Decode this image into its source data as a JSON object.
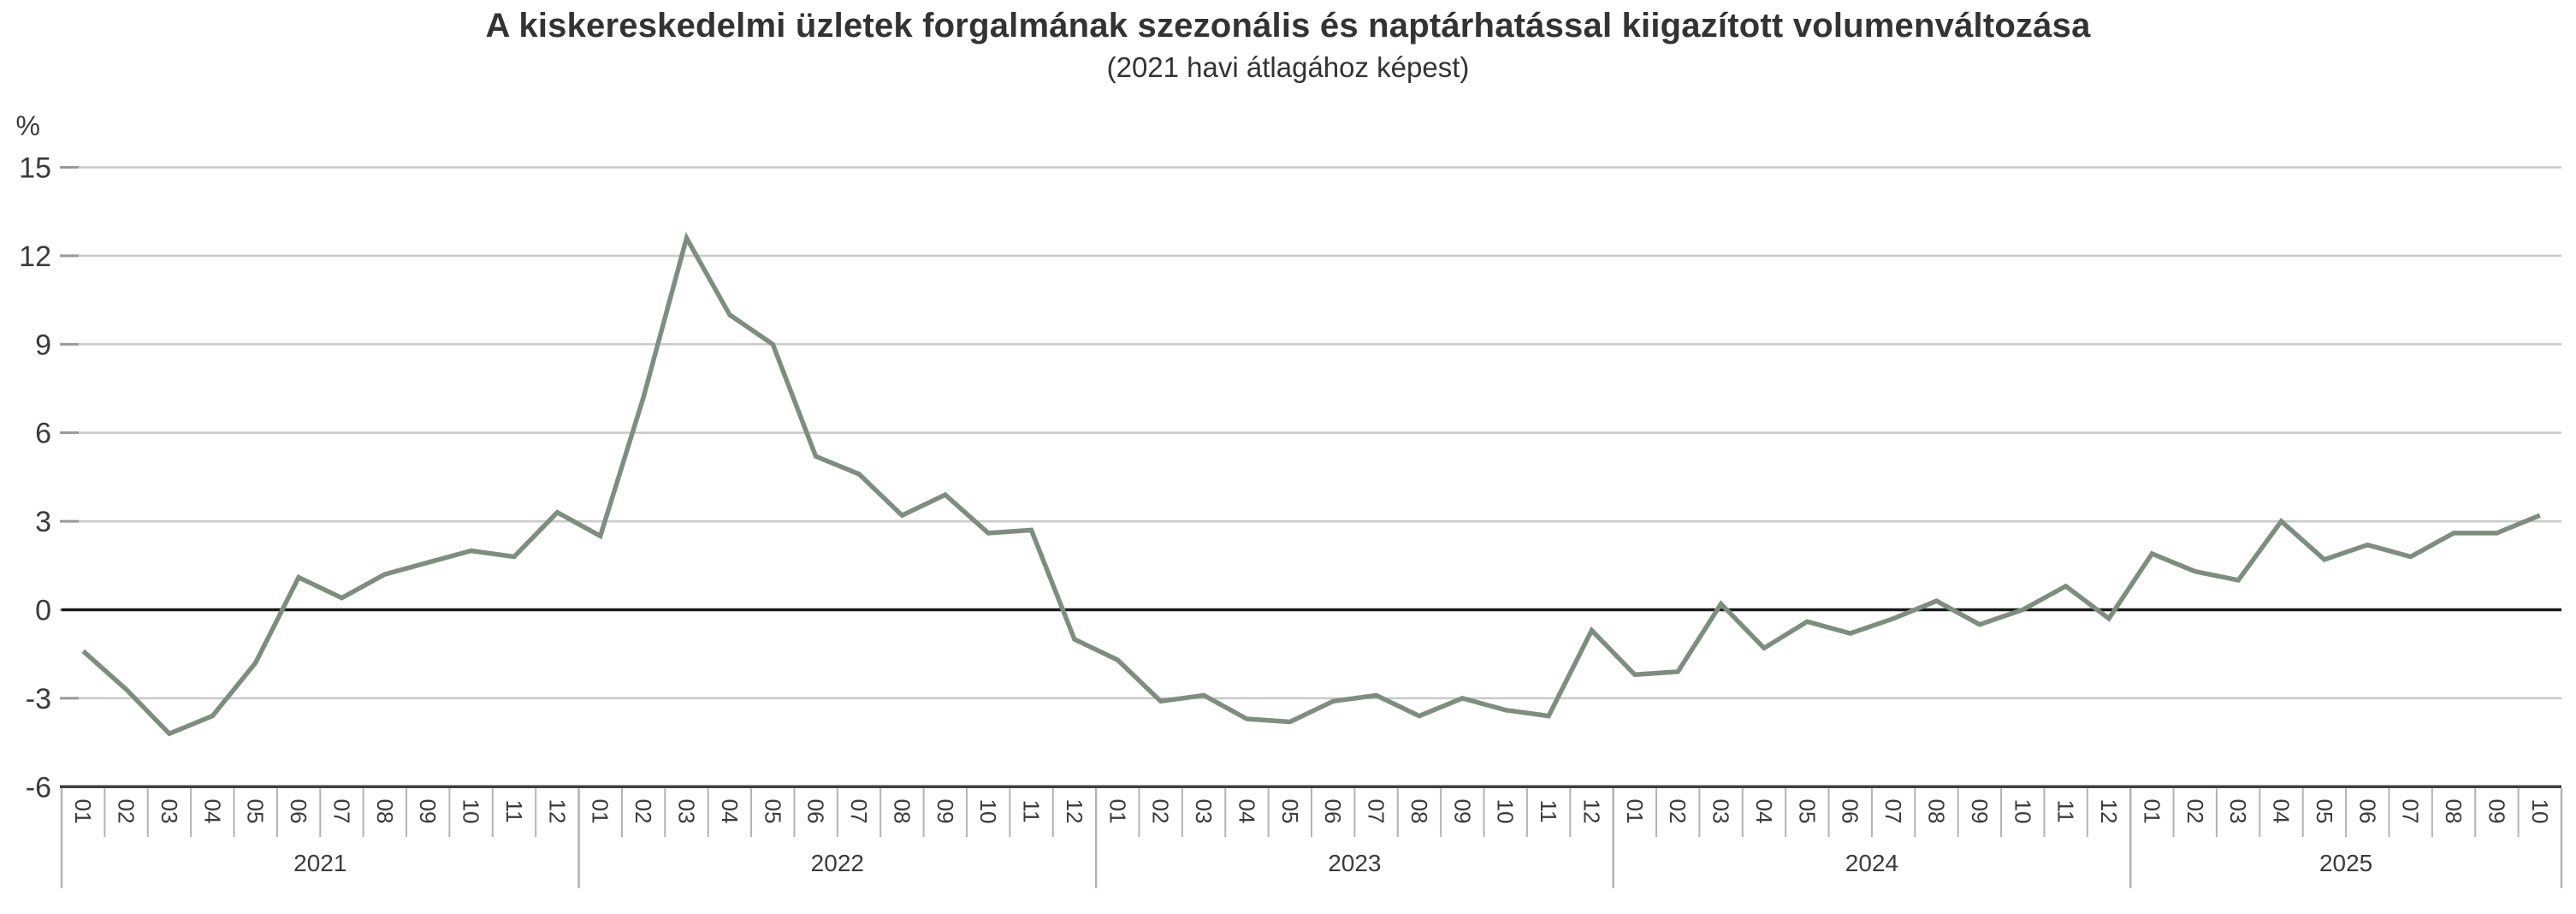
{
  "header": {
    "title": "A kiskereskedelmi üzletek forgalmának szezonális és naptárhatással kiigazított volumenváltozása",
    "subtitle": "(2021 havi átlagához képest)"
  },
  "chart_data": {
    "type": "line",
    "title": "A kiskereskedelmi üzletek forgalmának szezonális és naptárhatással kiigazított volumenváltozása",
    "subtitle": "(2021 havi átlagához képest)",
    "ylabel": "%",
    "ylim": [
      -6,
      15
    ],
    "y_ticks": [
      15,
      12,
      9,
      6,
      3,
      0,
      -3,
      -6
    ],
    "grid": true,
    "legend_position": "none",
    "x": {
      "years": [
        {
          "label": "2021",
          "months": [
            "01",
            "02",
            "03",
            "04",
            "05",
            "06",
            "07",
            "08",
            "09",
            "10",
            "11",
            "12"
          ]
        },
        {
          "label": "2022",
          "months": [
            "01",
            "02",
            "03",
            "04",
            "05",
            "06",
            "07",
            "08",
            "09",
            "10",
            "11",
            "12"
          ]
        },
        {
          "label": "2023",
          "months": [
            "01",
            "02",
            "03",
            "04",
            "05",
            "06",
            "07",
            "08",
            "09",
            "10",
            "11",
            "12"
          ]
        },
        {
          "label": "2024",
          "months": [
            "01",
            "02",
            "03",
            "04",
            "05",
            "06",
            "07",
            "08",
            "09",
            "10",
            "11",
            "12"
          ]
        },
        {
          "label": "2025",
          "months": [
            "01",
            "02",
            "03",
            "04",
            "05",
            "06",
            "07",
            "08",
            "09",
            "10"
          ]
        }
      ]
    },
    "series": [
      {
        "name": "Kiigazított volumenváltozás",
        "color": "#7c8f7e",
        "values": [
          -1.4,
          -2.7,
          -4.2,
          -3.6,
          -1.8,
          1.1,
          0.4,
          1.2,
          1.6,
          2.0,
          1.8,
          3.3,
          2.5,
          7.2,
          12.6,
          10.0,
          9.0,
          5.2,
          4.6,
          3.2,
          3.9,
          2.6,
          2.7,
          -1.0,
          -1.7,
          -3.1,
          -2.9,
          -3.7,
          -3.8,
          -3.1,
          -2.9,
          -3.6,
          -3.0,
          -3.4,
          -3.6,
          -0.7,
          -2.2,
          -2.1,
          0.2,
          -1.3,
          -0.4,
          -0.8,
          -0.3,
          0.3,
          -0.5,
          0.0,
          0.8,
          -0.3,
          1.9,
          1.3,
          1.0,
          3.0,
          1.7,
          2.2,
          1.8,
          2.6,
          2.6,
          3.2
        ]
      }
    ]
  },
  "colors": {
    "gridline": "#c9c9c9",
    "tick": "#999999",
    "zero_line": "#1a1a1a",
    "axis_line": "#3f3f3f",
    "cell_border": "#b3b3b3",
    "label_text": "#3b3b3b",
    "title_text": "#333333",
    "background": "#ffffff"
  }
}
